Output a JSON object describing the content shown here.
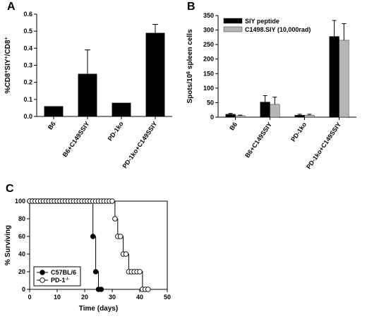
{
  "chart_data": [
    {
      "panel": "A",
      "type": "bar",
      "ylabel_parts": [
        "%CD8",
        "+",
        "SIY",
        "+",
        "/CD8",
        "+"
      ],
      "categories": [
        "B6",
        "B6+C149SSIY",
        "PD-1ko",
        "PD-1ko+C149SSIY"
      ],
      "values": [
        0.06,
        0.25,
        0.08,
        0.49
      ],
      "errors": [
        0,
        0.14,
        0,
        0.05
      ],
      "ylim": [
        0,
        0.6
      ],
      "yticks": [
        "0.0",
        "0.1",
        "0.2",
        "0.3",
        "0.4",
        "0.5",
        "0.6"
      ],
      "colors": [
        "#000000"
      ]
    },
    {
      "panel": "B",
      "type": "bar",
      "ylabel_parts": [
        "Spots/10",
        "6",
        " spleen cells"
      ],
      "categories": [
        "B6",
        "B6+C149SSIY",
        "PD-1ko",
        "PD-1ko+C149SSIY"
      ],
      "series": [
        {
          "name": "SIY peptide",
          "values": [
            10,
            52,
            7,
            278
          ],
          "errors": [
            3,
            22,
            3,
            55
          ],
          "color": "#000000"
        },
        {
          "name": "C1498.SIY (10,000rad)",
          "values": [
            5,
            44,
            7,
            265
          ],
          "errors": [
            2,
            25,
            3,
            57
          ],
          "color": "#b5b5b5"
        }
      ],
      "ylim": [
        0,
        350
      ],
      "yticks": [
        "0",
        "50",
        "100",
        "150",
        "200",
        "250",
        "300",
        "350"
      ],
      "legend_position": "top-left"
    },
    {
      "panel": "C",
      "type": "line",
      "xlabel": "Time (days)",
      "ylabel": "% Surviving",
      "xlim": [
        0,
        50
      ],
      "ylim": [
        0,
        100
      ],
      "xticks": [
        "0",
        "10",
        "20",
        "30",
        "40",
        "50"
      ],
      "yticks": [
        "0",
        "20",
        "40",
        "60",
        "80",
        "100"
      ],
      "legend_position": "bottom-left",
      "series": [
        {
          "legend_parts": [
            "C57BL/6"
          ],
          "marker": "filled",
          "steps": [
            [
              0,
              100
            ],
            [
              23,
              100
            ],
            [
              23,
              60
            ],
            [
              24,
              60
            ],
            [
              24,
              20
            ],
            [
              25,
              20
            ],
            [
              25,
              0
            ],
            [
              26,
              0
            ]
          ],
          "points": [
            [
              0,
              100
            ],
            [
              1,
              100
            ],
            [
              2,
              100
            ],
            [
              3,
              100
            ],
            [
              4,
              100
            ],
            [
              5,
              100
            ],
            [
              6,
              100
            ],
            [
              7,
              100
            ],
            [
              8,
              100
            ],
            [
              9,
              100
            ],
            [
              10,
              100
            ],
            [
              11,
              100
            ],
            [
              12,
              100
            ],
            [
              13,
              100
            ],
            [
              14,
              100
            ],
            [
              15,
              100
            ],
            [
              16,
              100
            ],
            [
              17,
              100
            ],
            [
              18,
              100
            ],
            [
              19,
              100
            ],
            [
              20,
              100
            ],
            [
              21,
              100
            ],
            [
              22,
              100
            ],
            [
              23,
              60
            ],
            [
              24,
              20
            ],
            [
              25,
              0
            ],
            [
              26,
              0
            ]
          ]
        },
        {
          "legend_parts": [
            "PD-1",
            "-/-"
          ],
          "marker": "open",
          "steps": [
            [
              0,
              100
            ],
            [
              31,
              100
            ],
            [
              31,
              80
            ],
            [
              32,
              80
            ],
            [
              32,
              60
            ],
            [
              34,
              60
            ],
            [
              34,
              40
            ],
            [
              36,
              40
            ],
            [
              36,
              20
            ],
            [
              41,
              20
            ],
            [
              41,
              0
            ],
            [
              43,
              0
            ]
          ],
          "points": [
            [
              0,
              100
            ],
            [
              1,
              100
            ],
            [
              2,
              100
            ],
            [
              3,
              100
            ],
            [
              4,
              100
            ],
            [
              5,
              100
            ],
            [
              6,
              100
            ],
            [
              7,
              100
            ],
            [
              8,
              100
            ],
            [
              9,
              100
            ],
            [
              10,
              100
            ],
            [
              11,
              100
            ],
            [
              12,
              100
            ],
            [
              13,
              100
            ],
            [
              14,
              100
            ],
            [
              15,
              100
            ],
            [
              16,
              100
            ],
            [
              17,
              100
            ],
            [
              18,
              100
            ],
            [
              19,
              100
            ],
            [
              20,
              100
            ],
            [
              21,
              100
            ],
            [
              22,
              100
            ],
            [
              23,
              100
            ],
            [
              24,
              100
            ],
            [
              25,
              100
            ],
            [
              26,
              100
            ],
            [
              27,
              100
            ],
            [
              28,
              100
            ],
            [
              29,
              100
            ],
            [
              30,
              100
            ],
            [
              31,
              80
            ],
            [
              32,
              60
            ],
            [
              33,
              60
            ],
            [
              34,
              40
            ],
            [
              35,
              40
            ],
            [
              36,
              20
            ],
            [
              37,
              20
            ],
            [
              38,
              20
            ],
            [
              39,
              20
            ],
            [
              40,
              20
            ],
            [
              41,
              0
            ],
            [
              42,
              0
            ],
            [
              43,
              0
            ]
          ]
        }
      ]
    }
  ]
}
